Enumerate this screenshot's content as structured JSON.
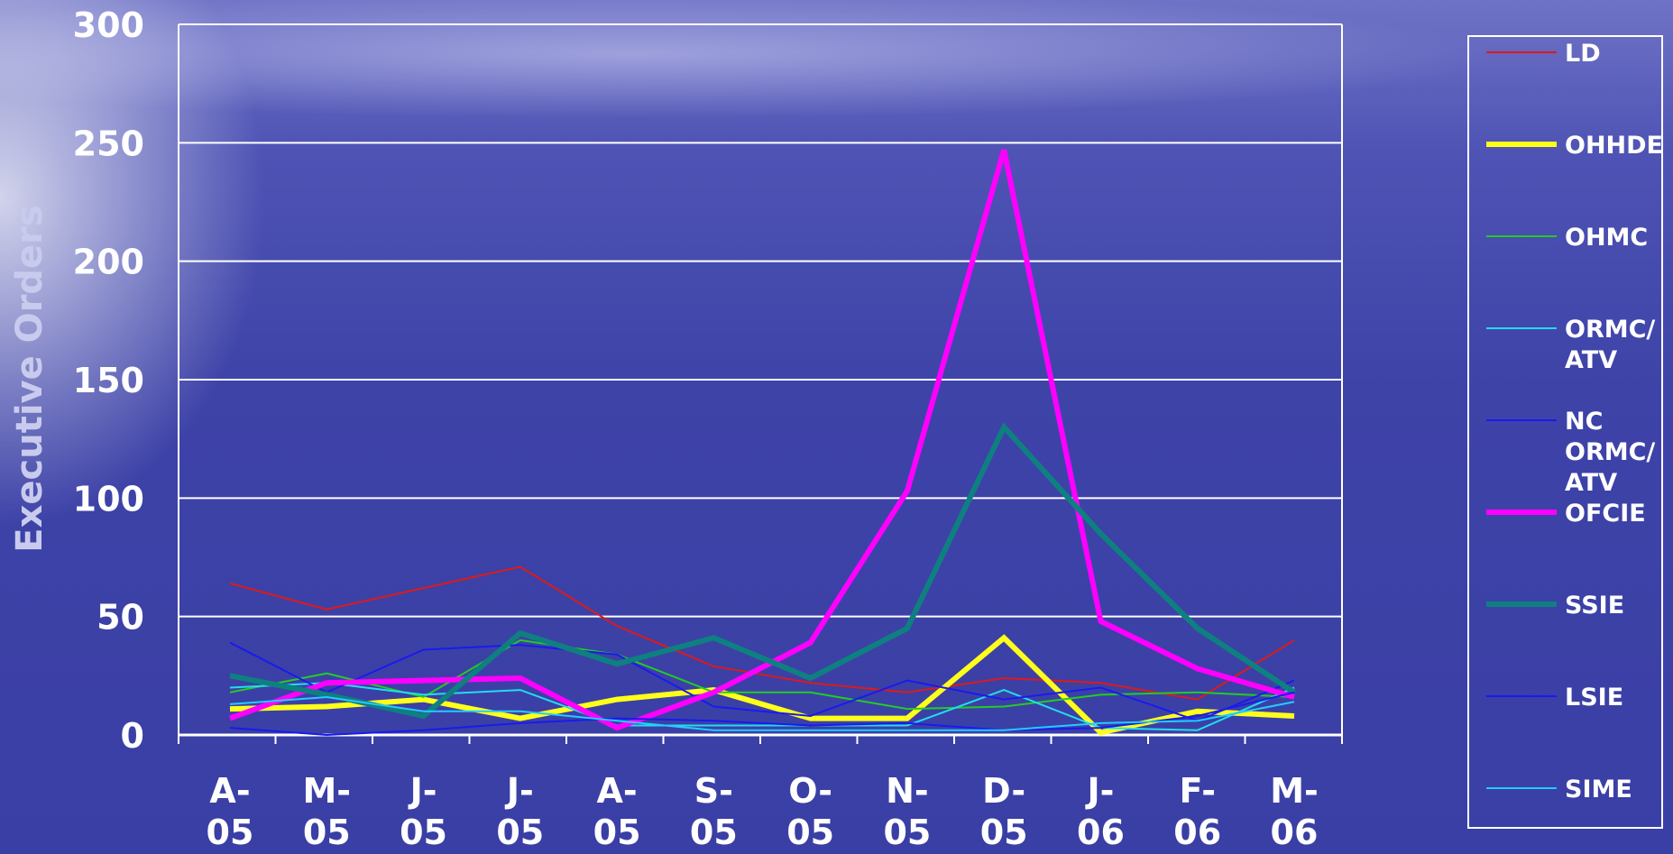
{
  "chart_data": {
    "type": "line",
    "title": "",
    "xlabel": "",
    "ylabel": "Executive Orders",
    "ylim": [
      0,
      300
    ],
    "yticks": [
      "0",
      "50",
      "100",
      "150",
      "200",
      "250",
      "300"
    ],
    "grid": true,
    "legend_position": "right",
    "categories": [
      "A-\n05",
      "M-\n05",
      "J-\n05",
      "J-\n05",
      "A-\n05",
      "S-\n05",
      "O-\n05",
      "N-\n05",
      "D-\n05",
      "J-\n06",
      "F-\n06",
      "M-\n06"
    ],
    "series": [
      {
        "name": "LD",
        "color": "#dd1a1a",
        "width": 2,
        "values": [
          64,
          53,
          62,
          71,
          46,
          29,
          22,
          18,
          24,
          22,
          15,
          40
        ]
      },
      {
        "name": "OHHDE",
        "color": "#ffff1a",
        "width": 6,
        "values": [
          11,
          12,
          15,
          7,
          15,
          19,
          7,
          7,
          41,
          1,
          10,
          8
        ]
      },
      {
        "name": "OHMC",
        "color": "#22cc22",
        "width": 2,
        "values": [
          18,
          26,
          16,
          40,
          34,
          18,
          18,
          11,
          12,
          17,
          18,
          16
        ]
      },
      {
        "name": "ORMC/\nATV",
        "color": "#22ddee",
        "width": 2,
        "values": [
          20,
          22,
          17,
          19,
          4,
          4,
          4,
          4,
          19,
          3,
          2,
          20
        ]
      },
      {
        "name": "NC\nORMC/\nATV",
        "color": "#1a1aee",
        "width": 2,
        "values": [
          39,
          18,
          36,
          38,
          34,
          12,
          8,
          23,
          15,
          20,
          6,
          23
        ]
      },
      {
        "name": "OFCIE",
        "color": "#ff00ff",
        "width": 6,
        "values": [
          7,
          22,
          23,
          24,
          3,
          18,
          39,
          103,
          247,
          48,
          28,
          16
        ]
      },
      {
        "name": "SSIE",
        "color": "#0e8080",
        "width": 6,
        "values": [
          25,
          17,
          8,
          43,
          30,
          41,
          24,
          45,
          130,
          85,
          45,
          18
        ]
      },
      {
        "name": "LSIE",
        "color": "#1a1aee",
        "width": 2,
        "values": [
          3,
          0,
          2,
          5,
          7,
          6,
          4,
          5,
          2,
          3,
          8,
          18
        ]
      },
      {
        "name": "SIME",
        "color": "#22ccff",
        "width": 2,
        "values": [
          13,
          16,
          10,
          10,
          6,
          2,
          2,
          2,
          2,
          5,
          6,
          14
        ]
      }
    ]
  }
}
